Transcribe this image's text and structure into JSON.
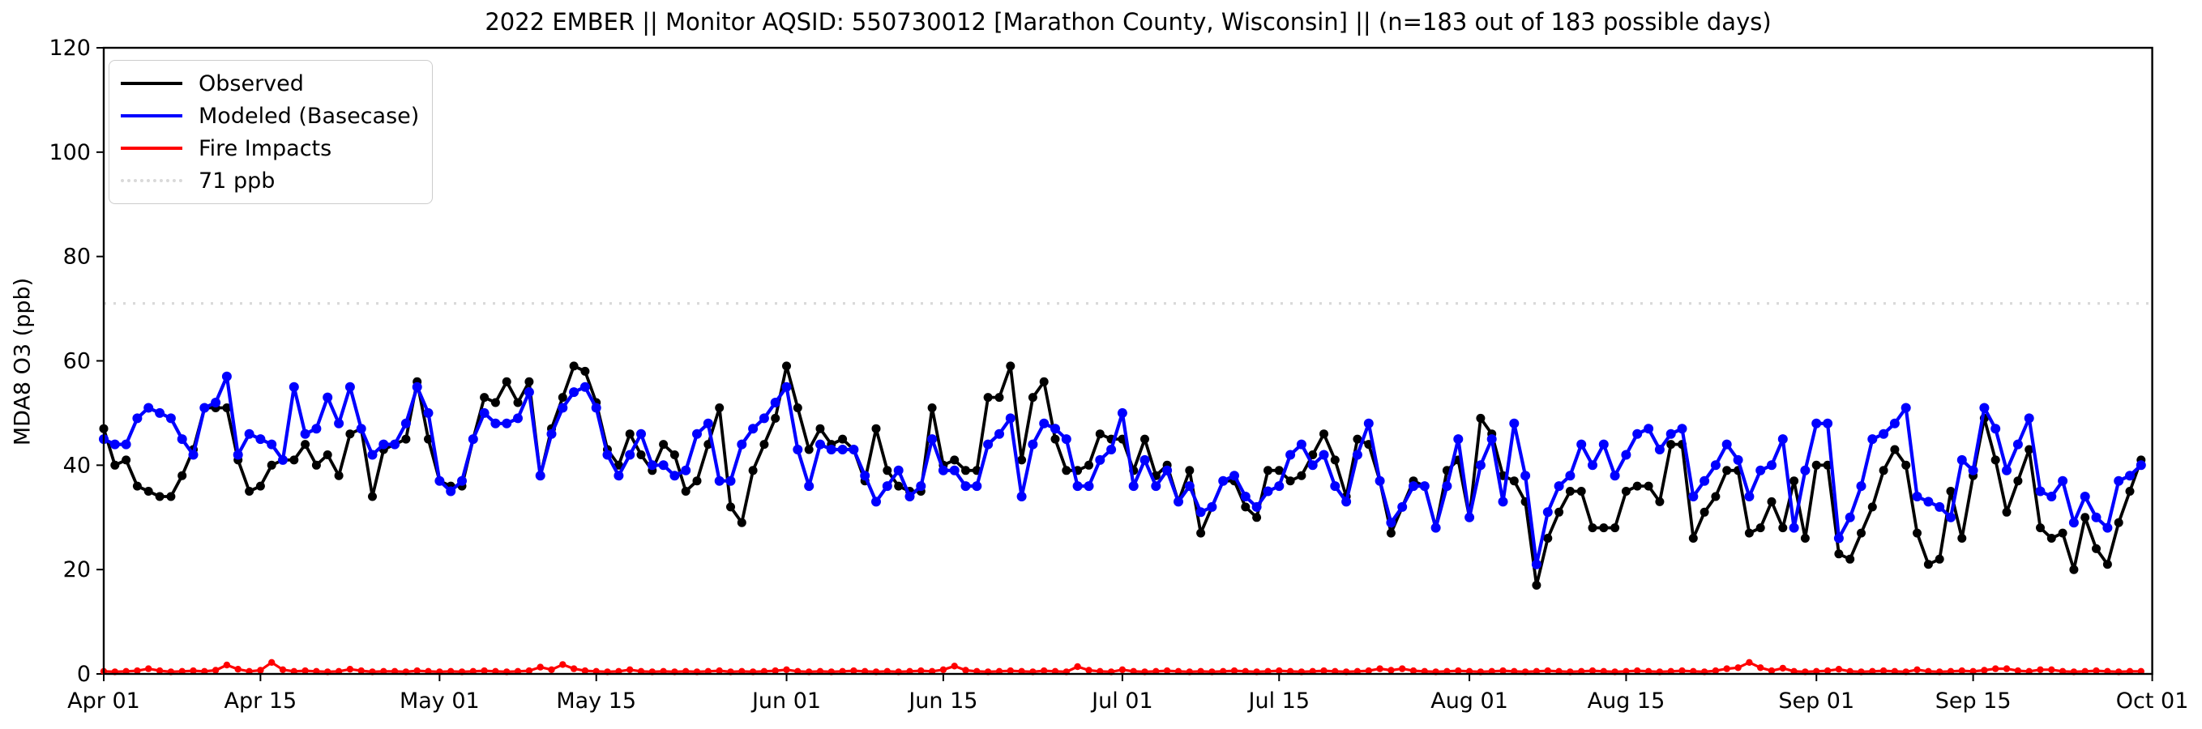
{
  "chart_data": {
    "type": "line",
    "title": "2022 EMBER || Monitor AQSID: 550730012 [Marathon County, Wisconsin] || (n=183 out of 183 possible days)",
    "ylabel": "MDA8 O3 (ppb)",
    "ylim": [
      0,
      120
    ],
    "y_ticks": [
      0,
      20,
      40,
      60,
      80,
      100,
      120
    ],
    "x_tick_labels": [
      "Apr 01",
      "Apr 15",
      "May 01",
      "May 15",
      "Jun 01",
      "Jun 15",
      "Jul 01",
      "Jul 15",
      "Aug 01",
      "Aug 15",
      "Sep 01",
      "Sep 15",
      "Oct 01"
    ],
    "x_tick_days": [
      0,
      14,
      30,
      44,
      61,
      75,
      91,
      105,
      122,
      136,
      153,
      167,
      183
    ],
    "x_range_days": [
      0,
      183
    ],
    "n_days": 183,
    "grid": false,
    "legend_position": "upper left",
    "threshold_line": {
      "label": "71 ppb",
      "value": 71,
      "color": "#d9d9d9",
      "style": "dotted"
    },
    "series": [
      {
        "name": "Observed",
        "color": "#000000",
        "values": [
          47,
          40,
          41,
          36,
          35,
          34,
          34,
          38,
          43,
          51,
          51,
          51,
          41,
          35,
          36,
          40,
          41,
          41,
          44,
          40,
          42,
          38,
          46,
          47,
          34,
          43,
          44,
          45,
          56,
          45,
          37,
          36,
          36,
          45,
          53,
          52,
          56,
          52,
          56,
          38,
          47,
          53,
          59,
          58,
          52,
          43,
          40,
          46,
          42,
          39,
          44,
          42,
          35,
          37,
          44,
          51,
          32,
          29,
          39,
          44,
          49,
          59,
          51,
          43,
          47,
          44,
          45,
          43,
          37,
          47,
          39,
          36,
          35,
          35,
          51,
          40,
          41,
          39,
          39,
          53,
          53,
          59,
          41,
          53,
          56,
          45,
          39,
          39,
          40,
          46,
          45,
          45,
          39,
          45,
          38,
          40,
          33,
          39,
          27,
          32,
          37,
          37,
          32,
          30,
          39,
          39,
          37,
          38,
          42,
          46,
          41,
          34,
          45,
          44,
          37,
          27,
          32,
          37,
          36,
          28,
          39,
          41,
          30,
          49,
          46,
          38,
          37,
          33,
          17,
          26,
          31,
          35,
          35,
          28,
          28,
          28,
          35,
          36,
          36,
          33,
          44,
          44,
          26,
          31,
          34,
          39,
          39,
          27,
          28,
          33,
          28,
          37,
          26,
          40,
          40,
          23,
          22,
          27,
          32,
          39,
          43,
          40,
          27,
          21,
          22,
          35,
          26,
          38,
          49,
          41,
          31,
          37,
          43,
          28,
          26,
          27,
          20,
          30,
          24,
          21,
          29,
          35,
          41
        ]
      },
      {
        "name": "Modeled (Basecase)",
        "color": "#0000ff",
        "values": [
          45,
          44,
          44,
          49,
          51,
          50,
          49,
          45,
          42,
          51,
          52,
          57,
          42,
          46,
          45,
          44,
          41,
          55,
          46,
          47,
          53,
          48,
          55,
          47,
          42,
          44,
          44,
          48,
          55,
          50,
          37,
          35,
          37,
          45,
          50,
          48,
          48,
          49,
          54,
          38,
          46,
          51,
          54,
          55,
          51,
          42,
          38,
          42,
          46,
          40,
          40,
          38,
          39,
          46,
          48,
          37,
          37,
          44,
          47,
          49,
          52,
          55,
          43,
          36,
          44,
          43,
          43,
          43,
          38,
          33,
          36,
          39,
          34,
          36,
          45,
          39,
          39,
          36,
          36,
          44,
          46,
          49,
          34,
          44,
          48,
          47,
          45,
          36,
          36,
          41,
          43,
          50,
          36,
          41,
          36,
          39,
          33,
          36,
          31,
          32,
          37,
          38,
          34,
          32,
          35,
          36,
          42,
          44,
          40,
          42,
          36,
          33,
          42,
          48,
          37,
          29,
          32,
          36,
          36,
          28,
          36,
          45,
          30,
          40,
          45,
          33,
          48,
          38,
          21,
          31,
          36,
          38,
          44,
          40,
          44,
          38,
          42,
          46,
          47,
          43,
          46,
          47,
          34,
          37,
          40,
          44,
          41,
          34,
          39,
          40,
          45,
          28,
          39,
          48,
          48,
          26,
          30,
          36,
          45,
          46,
          48,
          51,
          34,
          33,
          32,
          30,
          41,
          39,
          51,
          47,
          39,
          44,
          49,
          35,
          34,
          37,
          29,
          34,
          30,
          28,
          37,
          38,
          40
        ]
      },
      {
        "name": "Fire Impacts",
        "color": "#ff0000",
        "values": [
          0.5,
          0.4,
          0.5,
          0.6,
          1.0,
          0.6,
          0.4,
          0.5,
          0.6,
          0.5,
          0.7,
          1.7,
          0.9,
          0.5,
          0.7,
          2.2,
          0.8,
          0.5,
          0.6,
          0.5,
          0.4,
          0.5,
          0.9,
          0.6,
          0.4,
          0.5,
          0.5,
          0.4,
          0.6,
          0.5,
          0.4,
          0.5,
          0.4,
          0.5,
          0.6,
          0.5,
          0.4,
          0.5,
          0.6,
          1.3,
          0.8,
          1.8,
          1.0,
          0.6,
          0.5,
          0.4,
          0.5,
          0.8,
          0.5,
          0.4,
          0.5,
          0.4,
          0.5,
          0.4,
          0.5,
          0.6,
          0.4,
          0.5,
          0.4,
          0.5,
          0.6,
          0.8,
          0.5,
          0.4,
          0.5,
          0.4,
          0.5,
          0.6,
          0.5,
          0.4,
          0.5,
          0.4,
          0.5,
          0.6,
          0.5,
          0.8,
          1.5,
          0.7,
          0.5,
          0.4,
          0.5,
          0.6,
          0.5,
          0.4,
          0.6,
          0.5,
          0.4,
          1.4,
          0.7,
          0.5,
          0.4,
          0.8,
          0.5,
          0.4,
          0.5,
          0.6,
          0.5,
          0.4,
          0.5,
          0.4,
          0.5,
          0.6,
          0.5,
          0.4,
          0.5,
          0.6,
          0.5,
          0.4,
          0.5,
          0.6,
          0.5,
          0.4,
          0.5,
          0.6,
          1.0,
          0.7,
          1.0,
          0.6,
          0.5,
          0.4,
          0.5,
          0.6,
          0.5,
          0.4,
          0.5,
          0.6,
          0.5,
          0.4,
          0.5,
          0.6,
          0.5,
          0.4,
          0.5,
          0.6,
          0.5,
          0.4,
          0.5,
          0.6,
          0.5,
          0.4,
          0.5,
          0.6,
          0.5,
          0.4,
          0.6,
          1.0,
          1.2,
          2.2,
          1.2,
          0.6,
          1.1,
          0.5,
          0.4,
          0.5,
          0.6,
          0.9,
          0.5,
          0.4,
          0.5,
          0.6,
          0.5,
          0.4,
          0.8,
          0.5,
          0.4,
          0.5,
          0.6,
          0.5,
          0.7,
          1.0,
          1.0,
          0.6,
          0.5,
          0.8,
          0.8,
          0.5,
          0.4,
          0.5,
          0.6,
          0.5,
          0.4,
          0.5,
          0.5
        ]
      }
    ],
    "legend": {
      "items": [
        {
          "label": "Observed",
          "color": "#000000",
          "line": "solid"
        },
        {
          "label": "Modeled (Basecase)",
          "color": "#0000ff",
          "line": "solid"
        },
        {
          "label": "Fire Impacts",
          "color": "#ff0000",
          "line": "solid"
        },
        {
          "label": "71 ppb",
          "color": "#d9d9d9",
          "line": "dotted"
        }
      ]
    }
  }
}
